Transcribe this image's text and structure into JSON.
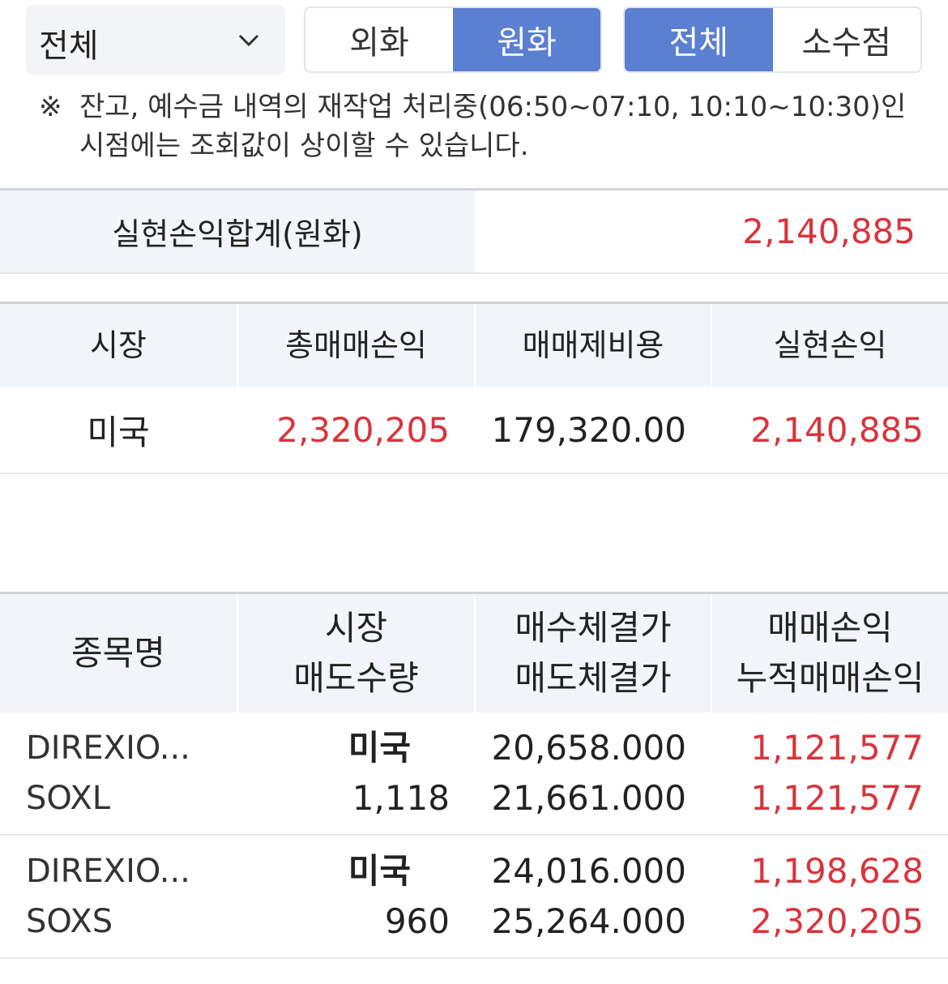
{
  "filter": {
    "dropdown_label": "전체",
    "currency_toggle": [
      {
        "label": "외화",
        "active": false
      },
      {
        "label": "원화",
        "active": true
      }
    ],
    "decimal_toggle": [
      {
        "label": "전체",
        "active": true
      },
      {
        "label": "소수점",
        "active": false
      }
    ]
  },
  "notice": {
    "mark": "※",
    "text": "잔고, 예수금 내역의 재작업 처리중(06:50~07:10, 10:10~10:30)인 시점에는 조회값이 상이할 수 있습니다."
  },
  "summary": {
    "label": "실현손익합계(원화)",
    "value": "2,140,885"
  },
  "market_table": {
    "headers": [
      "시장",
      "총매매손익",
      "매매제비용",
      "실현손익"
    ],
    "rows": [
      {
        "market": "미국",
        "total_pl": "2,320,205",
        "fees": "179,320.00",
        "realized": "2,140,885"
      }
    ]
  },
  "stock_table": {
    "headers": [
      {
        "line1": "종목명",
        "line2": ""
      },
      {
        "line1": "시장",
        "line2": "매도수량"
      },
      {
        "line1": "매수체결가",
        "line2": "매도체결가"
      },
      {
        "line1": "매매손익",
        "line2": "누적매매손익"
      }
    ],
    "rows": [
      {
        "name": "DIREXIO...",
        "ticker": "SOXL",
        "market": "미국",
        "qty": "1,118",
        "buy_price": "20,658.000",
        "sell_price": "21,661.000",
        "pl": "1,121,577",
        "cum_pl": "1,121,577"
      },
      {
        "name": "DIREXIO...",
        "ticker": "SOXS",
        "market": "미국",
        "qty": "960",
        "buy_price": "24,016.000",
        "sell_price": "25,264.000",
        "pl": "1,198,628",
        "cum_pl": "2,320,205"
      }
    ]
  },
  "colors": {
    "accent": "#5b7fd1",
    "profit": "#d9343c",
    "header_bg": "#f1f5f9"
  }
}
